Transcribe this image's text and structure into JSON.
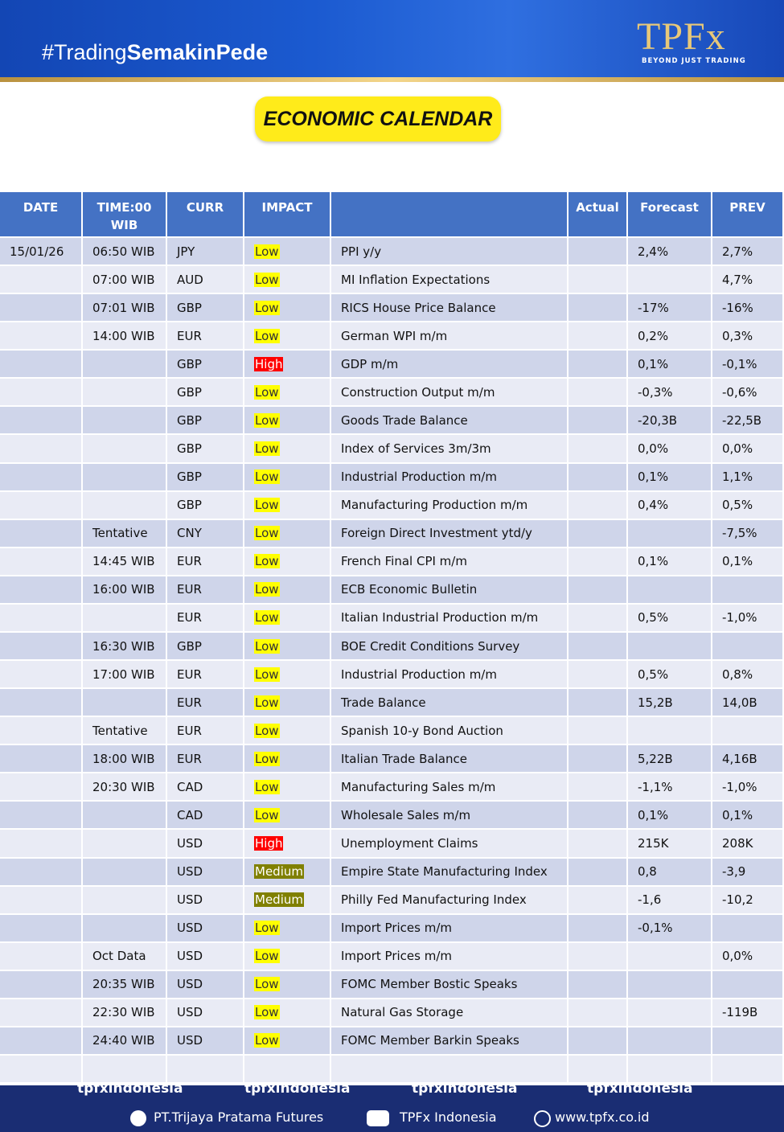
{
  "header": {
    "hashtag_plain": "#Trading",
    "hashtag_bold": "SemakinPede",
    "logo": "TPFx",
    "tagline": "BEYOND JUST TRADING",
    "title": "ECONOMIC CALENDAR"
  },
  "table": {
    "columns": [
      "DATE",
      "TIME:00 WIB",
      "CURR",
      "IMPACT",
      null,
      "Actual",
      "Forecast",
      "PREV"
    ],
    "impact_styles": {
      "Low": {
        "background": "#ffff00",
        "color": "#333333"
      },
      "High": {
        "background": "#ff0000",
        "color": "#ffffff"
      },
      "Medium": {
        "background": "#808000",
        "color": "#ffffff"
      }
    },
    "rows": [
      [
        "15/01/26",
        "06:50 WIB",
        "JPY",
        "Low",
        "PPI y/y",
        null,
        "2,4%",
        "2,7%"
      ],
      [
        null,
        "07:00 WIB",
        "AUD",
        "Low",
        "MI Inflation Expectations",
        null,
        null,
        "4,7%"
      ],
      [
        null,
        "07:01 WIB",
        "GBP",
        "Low",
        "RICS House Price Balance",
        null,
        "-17%",
        "-16%"
      ],
      [
        null,
        "14:00 WIB",
        "EUR",
        "Low",
        "German WPI m/m",
        null,
        "0,2%",
        "0,3%"
      ],
      [
        null,
        null,
        "GBP",
        "High",
        "GDP m/m",
        null,
        "0,1%",
        "-0,1%"
      ],
      [
        null,
        null,
        "GBP",
        "Low",
        "Construction Output m/m",
        null,
        "-0,3%",
        "-0,6%"
      ],
      [
        null,
        null,
        "GBP",
        "Low",
        "Goods Trade Balance",
        null,
        "-20,3B",
        "-22,5B"
      ],
      [
        null,
        null,
        "GBP",
        "Low",
        "Index of Services 3m/3m",
        null,
        "0,0%",
        "0,0%"
      ],
      [
        null,
        null,
        "GBP",
        "Low",
        "Industrial Production m/m",
        null,
        "0,1%",
        "1,1%"
      ],
      [
        null,
        null,
        "GBP",
        "Low",
        "Manufacturing Production m/m",
        null,
        "0,4%",
        "0,5%"
      ],
      [
        null,
        "Tentative",
        "CNY",
        "Low",
        "Foreign Direct Investment ytd/y",
        null,
        null,
        "-7,5%"
      ],
      [
        null,
        "14:45 WIB",
        "EUR",
        "Low",
        "French Final CPI m/m",
        null,
        "0,1%",
        "0,1%"
      ],
      [
        null,
        "16:00 WIB",
        "EUR",
        "Low",
        "ECB Economic Bulletin",
        null,
        null,
        null
      ],
      [
        null,
        null,
        "EUR",
        "Low",
        "Italian Industrial Production m/m",
        null,
        "0,5%",
        "-1,0%"
      ],
      [
        null,
        "16:30 WIB",
        "GBP",
        "Low",
        "BOE Credit Conditions Survey",
        null,
        null,
        null
      ],
      [
        null,
        "17:00 WIB",
        "EUR",
        "Low",
        "Industrial Production m/m",
        null,
        "0,5%",
        "0,8%"
      ],
      [
        null,
        null,
        "EUR",
        "Low",
        "Trade Balance",
        null,
        "15,2B",
        "14,0B"
      ],
      [
        null,
        "Tentative",
        "EUR",
        "Low",
        "Spanish 10-y Bond Auction",
        null,
        null,
        null
      ],
      [
        null,
        "18:00 WIB",
        "EUR",
        "Low",
        "Italian Trade Balance",
        null,
        "5,22B",
        "4,16B"
      ],
      [
        null,
        "20:30 WIB",
        "CAD",
        "Low",
        "Manufacturing Sales m/m",
        null,
        "-1,1%",
        "-1,0%"
      ],
      [
        null,
        null,
        "CAD",
        "Low",
        "Wholesale Sales m/m",
        null,
        "0,1%",
        "0,1%"
      ],
      [
        null,
        null,
        "USD",
        "High",
        "Unemployment Claims",
        null,
        "215K",
        "208K"
      ],
      [
        null,
        null,
        "USD",
        "Medium",
        "Empire State Manufacturing Index",
        null,
        "0,8",
        "-3,9"
      ],
      [
        null,
        null,
        "USD",
        "Medium",
        "Philly Fed Manufacturing Index",
        null,
        "-1,6",
        "-10,2"
      ],
      [
        null,
        null,
        "USD",
        "Low",
        "Import Prices m/m",
        null,
        "-0,1%",
        null
      ],
      [
        null,
        "Oct Data",
        "USD",
        "Low",
        "Import Prices m/m",
        null,
        null,
        "0,0%"
      ],
      [
        null,
        "20:35 WIB",
        "USD",
        "Low",
        "FOMC Member Bostic Speaks",
        null,
        null,
        null
      ],
      [
        null,
        "22:30 WIB",
        "USD",
        "Low",
        "Natural Gas Storage",
        null,
        null,
        "-119B"
      ],
      [
        null,
        "24:40 WIB",
        "USD",
        "Low",
        "FOMC Member Barkin Speaks",
        null,
        null,
        null
      ]
    ]
  },
  "footer": {
    "socials": [
      "tpfxindonesia",
      "tpfxindonesia",
      "tpfxindonesia",
      "tpfxindonesia"
    ],
    "company": "PT.Trijaya Pratama Futures",
    "youtube": "TPFx Indonesia",
    "website": "www.tpfx.co.id"
  }
}
